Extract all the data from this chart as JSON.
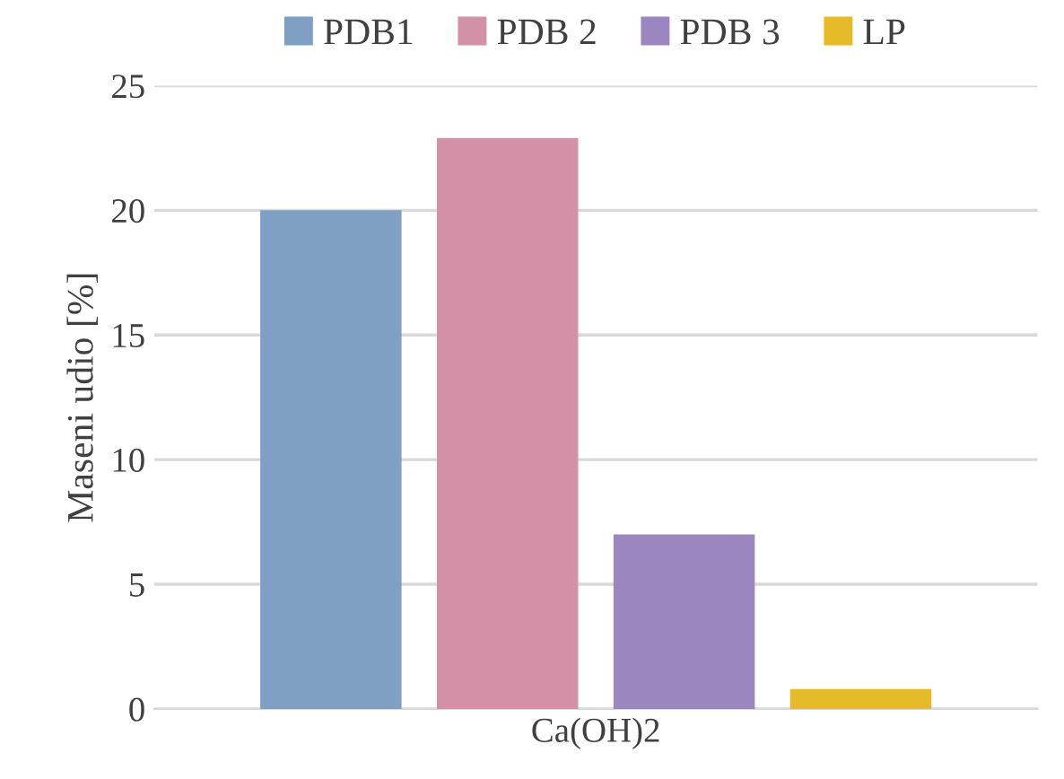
{
  "chart_data": {
    "type": "bar",
    "categories": [
      "Ca(OH)2"
    ],
    "ylabel": "Maseni udio [%]",
    "series": [
      {
        "name": "PDB1",
        "color": "#7f9fc3",
        "values": [
          20.0
        ]
      },
      {
        "name": "PDB 2",
        "color": "#d291a7",
        "values": [
          22.9
        ]
      },
      {
        "name": "PDB 3",
        "color": "#9c86c0",
        "values": [
          7.0
        ]
      },
      {
        "name": "LP",
        "color": "#e6bb2a",
        "values": [
          0.8
        ]
      }
    ],
    "ylim": [
      0,
      25
    ],
    "yticks": [
      0,
      5,
      10,
      15,
      20,
      25
    ],
    "grid": "y",
    "legend": "top"
  }
}
